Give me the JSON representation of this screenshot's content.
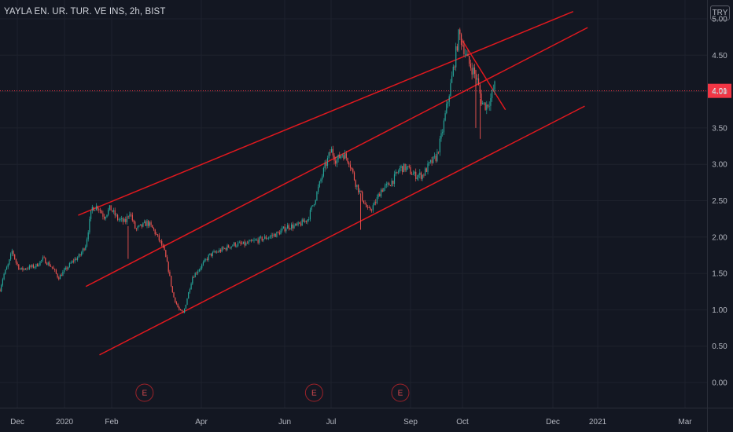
{
  "header": {
    "symbol_title": "YAYLA EN. UR. TUR. VE INS, 2h, BIST"
  },
  "currency_label": "TRY",
  "colors": {
    "background": "#131722",
    "up": "#26a69a",
    "down": "#ef5350",
    "channel": "#e0181e",
    "grid": "#1e222d",
    "price_tag": "#f23645",
    "axis_text": "#b2b5be"
  },
  "chart_data": {
    "type": "candlestick",
    "title": "YAYLA EN. UR. TUR. VE INS, 2h, BIST",
    "y_axis": {
      "ticks": [
        "5.00",
        "4.50",
        "4.00",
        "3.50",
        "3.00",
        "2.50",
        "2.00",
        "1.50",
        "1.00",
        "0.50",
        "0.00"
      ],
      "range": [
        -0.1,
        5.05
      ]
    },
    "x_axis": {
      "ticks": [
        "Dec",
        "2020",
        "Feb",
        "Apr",
        "Jun",
        "Jul",
        "Sep",
        "Oct",
        "Dec",
        "2021",
        "Mar"
      ]
    },
    "last_price": "4.01",
    "price_path": [
      [
        "2019-11-10",
        1.28
      ],
      [
        "2019-11-14",
        1.47
      ],
      [
        "2019-11-20",
        1.62
      ],
      [
        "2019-11-25",
        1.82
      ],
      [
        "2019-11-29",
        1.66
      ],
      [
        "2019-12-03",
        1.55
      ],
      [
        "2019-12-08",
        1.58
      ],
      [
        "2019-12-13",
        1.6
      ],
      [
        "2019-12-18",
        1.7
      ],
      [
        "2019-12-24",
        1.58
      ],
      [
        "2019-12-28",
        1.44
      ],
      [
        "2020-01-02",
        1.56
      ],
      [
        "2020-01-07",
        1.68
      ],
      [
        "2020-01-11",
        1.74
      ],
      [
        "2020-01-15",
        1.9
      ],
      [
        "2020-01-19",
        2.4
      ],
      [
        "2020-01-23",
        2.42
      ],
      [
        "2020-01-27",
        2.28
      ],
      [
        "2020-01-31",
        2.4
      ],
      [
        "2020-02-05",
        2.25
      ],
      [
        "2020-02-10",
        2.2
      ],
      [
        "2020-02-13",
        2.35
      ],
      [
        "2020-02-17",
        2.1
      ],
      [
        "2020-02-21",
        2.15
      ],
      [
        "2020-02-25",
        2.2
      ],
      [
        "2020-02-29",
        2.1
      ],
      [
        "2020-03-04",
        1.95
      ],
      [
        "2020-03-07",
        1.82
      ],
      [
        "2020-03-10",
        1.55
      ],
      [
        "2020-03-13",
        1.2
      ],
      [
        "2020-03-17",
        1.0
      ],
      [
        "2020-03-20",
        0.95
      ],
      [
        "2020-03-23",
        1.2
      ],
      [
        "2020-03-26",
        1.45
      ],
      [
        "2020-04-01",
        1.6
      ],
      [
        "2020-04-07",
        1.75
      ],
      [
        "2020-04-13",
        1.8
      ],
      [
        "2020-04-19",
        1.85
      ],
      [
        "2020-04-25",
        1.9
      ],
      [
        "2020-05-03",
        1.9
      ],
      [
        "2020-05-11",
        1.95
      ],
      [
        "2020-05-20",
        2.0
      ],
      [
        "2020-05-27",
        2.05
      ],
      [
        "2020-06-03",
        2.15
      ],
      [
        "2020-06-09",
        2.15
      ],
      [
        "2020-06-16",
        2.25
      ],
      [
        "2020-06-21",
        2.55
      ],
      [
        "2020-06-26",
        2.9
      ],
      [
        "2020-07-01",
        3.2
      ],
      [
        "2020-07-05",
        3.05
      ],
      [
        "2020-07-10",
        3.15
      ],
      [
        "2020-07-15",
        3.05
      ],
      [
        "2020-07-20",
        2.75
      ],
      [
        "2020-07-25",
        2.55
      ],
      [
        "2020-07-30",
        2.35
      ],
      [
        "2020-08-04",
        2.45
      ],
      [
        "2020-08-09",
        2.65
      ],
      [
        "2020-08-14",
        2.7
      ],
      [
        "2020-08-19",
        2.8
      ],
      [
        "2020-08-24",
        2.95
      ],
      [
        "2020-08-29",
        2.95
      ],
      [
        "2020-09-03",
        2.85
      ],
      [
        "2020-09-08",
        2.85
      ],
      [
        "2020-09-12",
        3.0
      ],
      [
        "2020-09-16",
        3.1
      ],
      [
        "2020-09-19",
        3.4
      ],
      [
        "2020-09-22",
        3.8
      ],
      [
        "2020-09-25",
        4.2
      ],
      [
        "2020-09-27",
        4.5
      ],
      [
        "2020-09-29",
        4.8
      ],
      [
        "2020-10-02",
        4.6
      ],
      [
        "2020-10-05",
        4.4
      ],
      [
        "2020-10-08",
        4.3
      ],
      [
        "2020-10-11",
        4.15
      ],
      [
        "2020-10-14",
        3.85
      ],
      [
        "2020-10-17",
        3.8
      ],
      [
        "2020-10-20",
        3.9
      ],
      [
        "2020-10-23",
        4.1
      ]
    ],
    "channel_lines": [
      {
        "name": "",
        "from": [
          "2020-01-10",
          2.3
        ],
        "to": [
          "2020-12-15",
          5.1
        ]
      },
      {
        "name": "",
        "from": [
          "2020-01-15",
          1.32
        ],
        "to": [
          "2020-12-25",
          4.88
        ]
      },
      {
        "name": "",
        "from": [
          "2020-01-24",
          0.38
        ],
        "to": [
          "2020-12-23",
          3.8
        ]
      },
      {
        "name": "",
        "from": [
          "2020-10-01",
          4.7
        ],
        "to": [
          "2020-10-30",
          3.75
        ]
      }
    ],
    "events": [
      {
        "label": "E",
        "date": "2020-02-23"
      },
      {
        "label": "E",
        "date": "2020-06-20"
      },
      {
        "label": "E",
        "date": "2020-08-24"
      }
    ]
  }
}
